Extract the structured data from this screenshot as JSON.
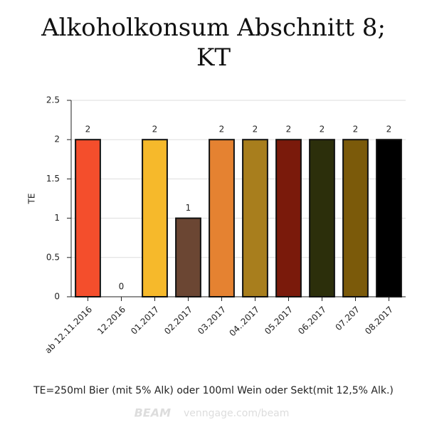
{
  "chart_data": {
    "type": "bar",
    "title": "Alkoholkonsum Abschnitt 8; KT",
    "ylabel": "TE",
    "categories": [
      "ab 12.11.2016",
      "12.2016",
      "01.2017",
      "02.2017",
      "03.2017",
      "04..2017",
      "05.2017",
      "06.2017",
      "07.207",
      "08.2017"
    ],
    "values": [
      2,
      0,
      2,
      1,
      2,
      2,
      2,
      2,
      2,
      2
    ],
    "colors": [
      "#f44e2c",
      "#ffffff",
      "#f6b92b",
      "#6b4633",
      "#e58231",
      "#a87e1d",
      "#7a1a0b",
      "#2c2f0b",
      "#7b5a0a",
      "#000000"
    ],
    "ylim": [
      0,
      2.5
    ],
    "yticks": [
      0,
      0.5,
      1,
      1.5,
      2,
      2.5
    ],
    "grid": true,
    "footnote": "TE=250ml Bier (mit 5% Alk) oder 100ml Wein oder Sekt(mit 12,5% Alk.)",
    "watermark": {
      "brand": "BEAM",
      "url": "venngage.com/beam"
    }
  }
}
